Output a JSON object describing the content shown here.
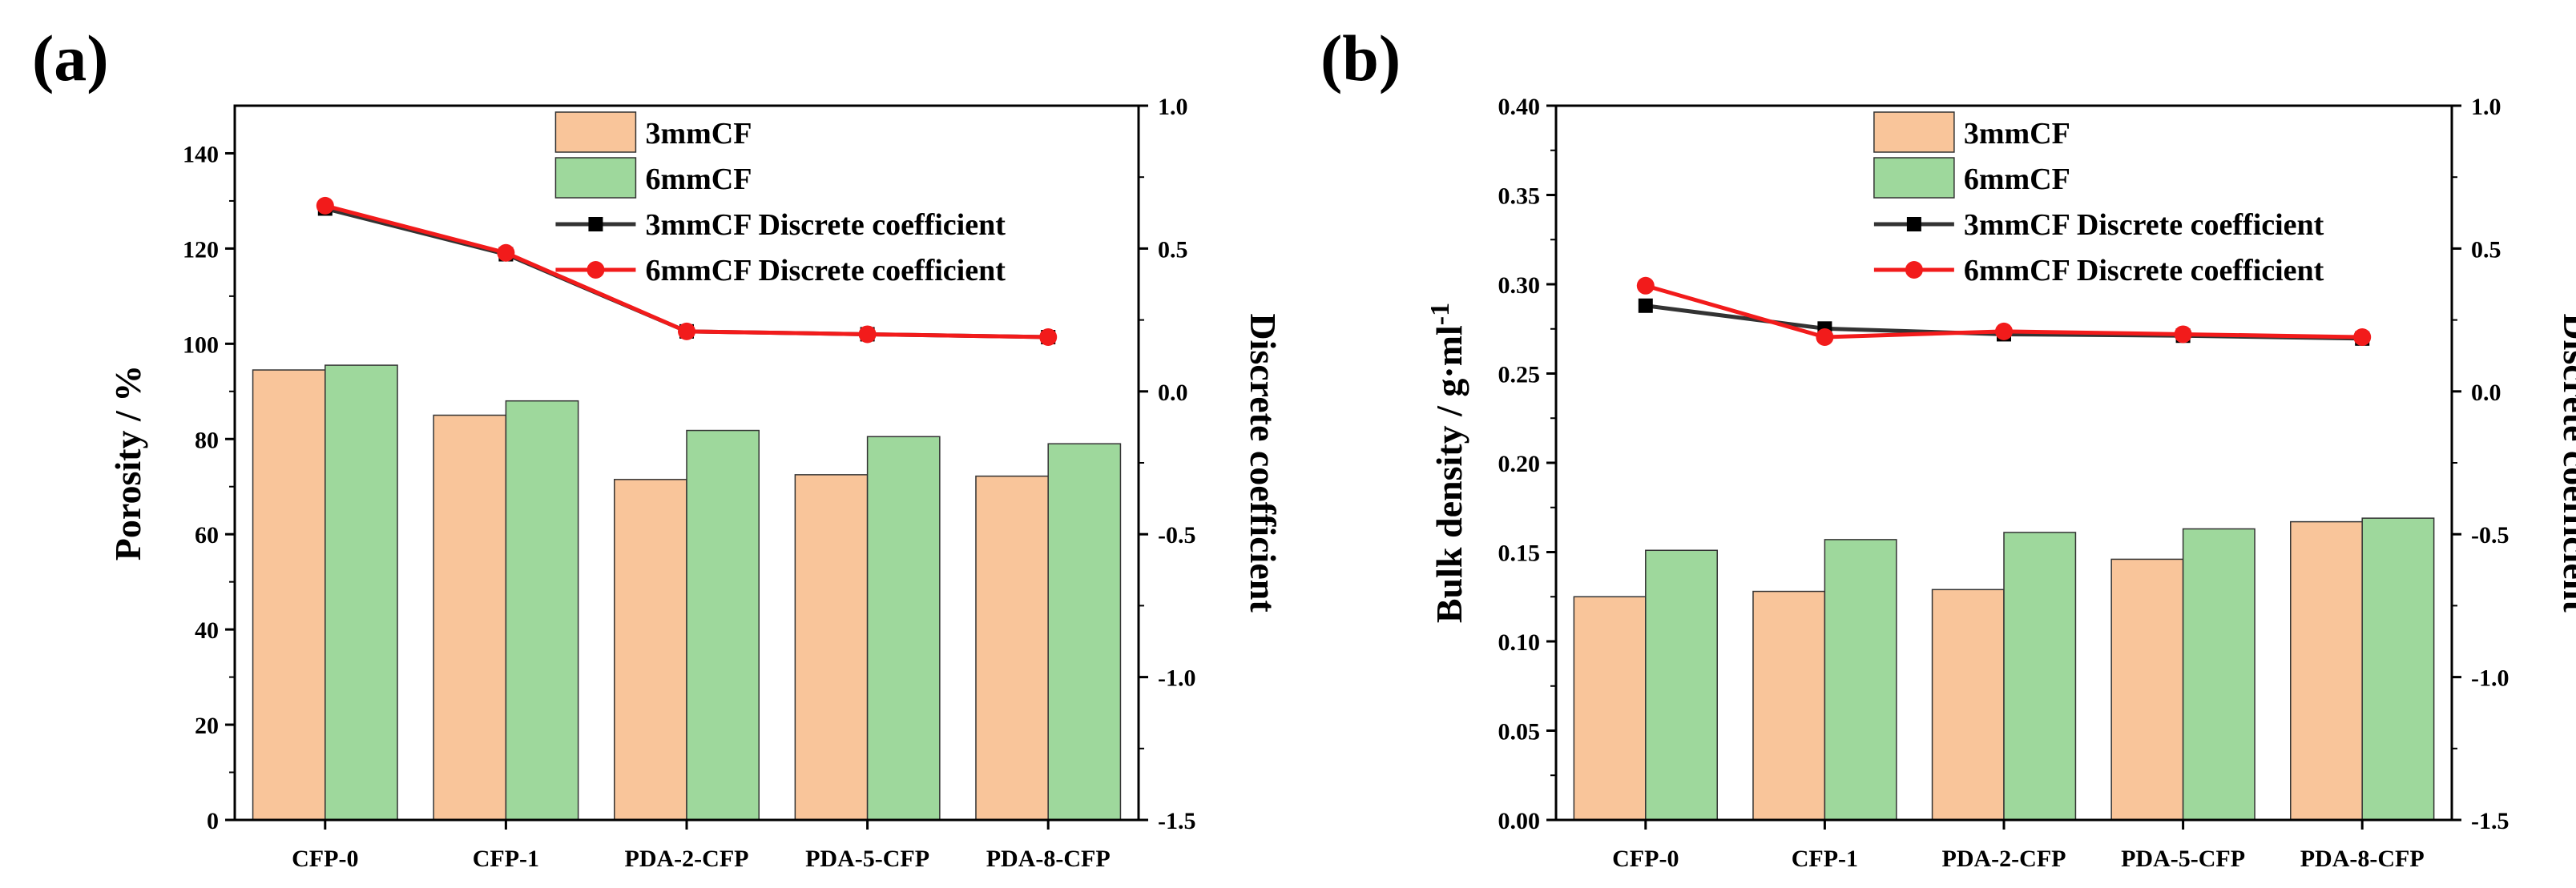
{
  "figure": {
    "colors": {
      "bar_3mm": "#F9C59A",
      "bar_6mm": "#9ED89C",
      "line_3mm": "#333333",
      "line_6mm": "#F21B1B",
      "marker_6mm": "#F21B1B",
      "axis": "#000000"
    }
  },
  "chart_data": [
    {
      "type": "bar",
      "panel_label": "(a)",
      "categories": [
        "CFP-0",
        "CFP-1",
        "PDA-2-CFP",
        "PDA-5-CFP",
        "PDA-8-CFP"
      ],
      "series": [
        {
          "name": "3mmCF",
          "kind": "bar",
          "axis": "left",
          "values": [
            94.5,
            85,
            71.5,
            72.5,
            72.2
          ]
        },
        {
          "name": "6mmCF",
          "kind": "bar",
          "axis": "left",
          "values": [
            95.5,
            88,
            81.8,
            80.5,
            79
          ]
        },
        {
          "name": "3mmCF Discrete coefficient",
          "kind": "line",
          "marker": "square",
          "axis": "right",
          "values": [
            0.64,
            0.48,
            0.21,
            0.2,
            0.19
          ]
        },
        {
          "name": "6mmCF Discrete coefficient",
          "kind": "line",
          "marker": "circle",
          "axis": "right",
          "values": [
            0.65,
            0.485,
            0.21,
            0.2,
            0.19
          ]
        }
      ],
      "ylabel": "Porosity / %",
      "ylim": [
        0,
        150
      ],
      "yticks": [
        0,
        20,
        40,
        60,
        80,
        100,
        120,
        140
      ],
      "ytick_labels": [
        "0",
        "20",
        "40",
        "60",
        "80",
        "100",
        "120",
        "140"
      ],
      "y2label": "Discrete coefficient",
      "y2lim": [
        -1.5,
        1.0
      ],
      "y2ticks": [
        -1.5,
        -1.0,
        -0.5,
        0.0,
        0.5,
        1.0
      ],
      "y2tick_labels": [
        "-1.5",
        "-1.0",
        "-0.5",
        "0.0",
        "0.5",
        "1.0"
      ],
      "legend_position": "top-center"
    },
    {
      "type": "bar",
      "panel_label": "(b)",
      "categories": [
        "CFP-0",
        "CFP-1",
        "PDA-2-CFP",
        "PDA-5-CFP",
        "PDA-8-CFP"
      ],
      "series": [
        {
          "name": "3mmCF",
          "kind": "bar",
          "axis": "left",
          "values": [
            0.125,
            0.128,
            0.129,
            0.146,
            0.167
          ]
        },
        {
          "name": "6mmCF",
          "kind": "bar",
          "axis": "left",
          "values": [
            0.151,
            0.157,
            0.161,
            0.163,
            0.169
          ]
        },
        {
          "name": "3mmCF Discrete coefficient",
          "kind": "line",
          "marker": "square",
          "axis": "right",
          "values": [
            0.3,
            0.22,
            0.2,
            0.195,
            0.185
          ]
        },
        {
          "name": "6mmCF Discrete coefficient",
          "kind": "line",
          "marker": "circle",
          "axis": "right",
          "values": [
            0.37,
            0.19,
            0.21,
            0.2,
            0.19
          ]
        }
      ],
      "ylabel": "Bulk density / g·ml",
      "ylabel_superscript": "-1",
      "ylim": [
        0,
        0.4
      ],
      "yticks": [
        0,
        0.05,
        0.1,
        0.15,
        0.2,
        0.25,
        0.3,
        0.35,
        0.4
      ],
      "ytick_labels": [
        "0.00",
        "0.05",
        "0.10",
        "0.15",
        "0.20",
        "0.25",
        "0.30",
        "0.35",
        "0.40"
      ],
      "y2label": "Discrete coefficient",
      "y2lim": [
        -1.5,
        1.0
      ],
      "y2ticks": [
        -1.5,
        -1.0,
        -0.5,
        0.0,
        0.5,
        1.0
      ],
      "y2tick_labels": [
        "-1.5",
        "-1.0",
        "-0.5",
        "0.0",
        "0.5",
        "1.0"
      ],
      "legend_position": "top-center"
    }
  ]
}
